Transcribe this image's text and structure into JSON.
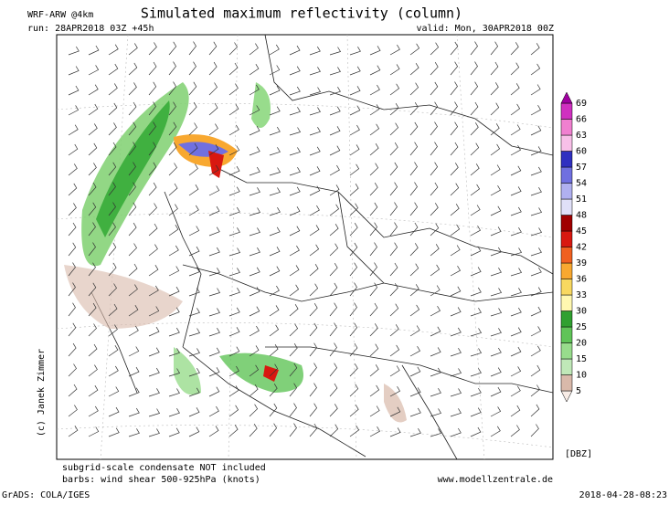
{
  "header": {
    "model": "WRF-ARW @4km",
    "title": "Simulated maximum reflectivity (column)",
    "run": "run: 28APR2018 03Z +45h",
    "valid": "valid: Mon, 30APR2018 00Z"
  },
  "copyright": "(c) Janek Zimmer",
  "colorbar": {
    "unit": "[DBZ]",
    "levels": [
      5,
      10,
      15,
      20,
      25,
      30,
      33,
      36,
      39,
      42,
      45,
      48,
      51,
      54,
      57,
      60,
      63,
      66,
      69
    ],
    "colors": [
      "#f8ece6",
      "#d9b9aa",
      "#c0e8b8",
      "#98dc8c",
      "#60c458",
      "#30a030",
      "#fff8b0",
      "#f8d860",
      "#f8a830",
      "#f06020",
      "#d81810",
      "#a00000",
      "#e0e0f8",
      "#b0b0f0",
      "#7070e0",
      "#3030c0",
      "#f8c0e8",
      "#f080d0",
      "#d030c0",
      "#a000a0"
    ]
  },
  "footer": {
    "note1": "subgrid-scale condensate NOT included",
    "note2": "barbs: wind shear 500-925hPa (knots)",
    "site": "www.modellzentrale.de",
    "grads": "GrADS: COLA/IGES",
    "stamp": "2018-04-28-08:23"
  }
}
